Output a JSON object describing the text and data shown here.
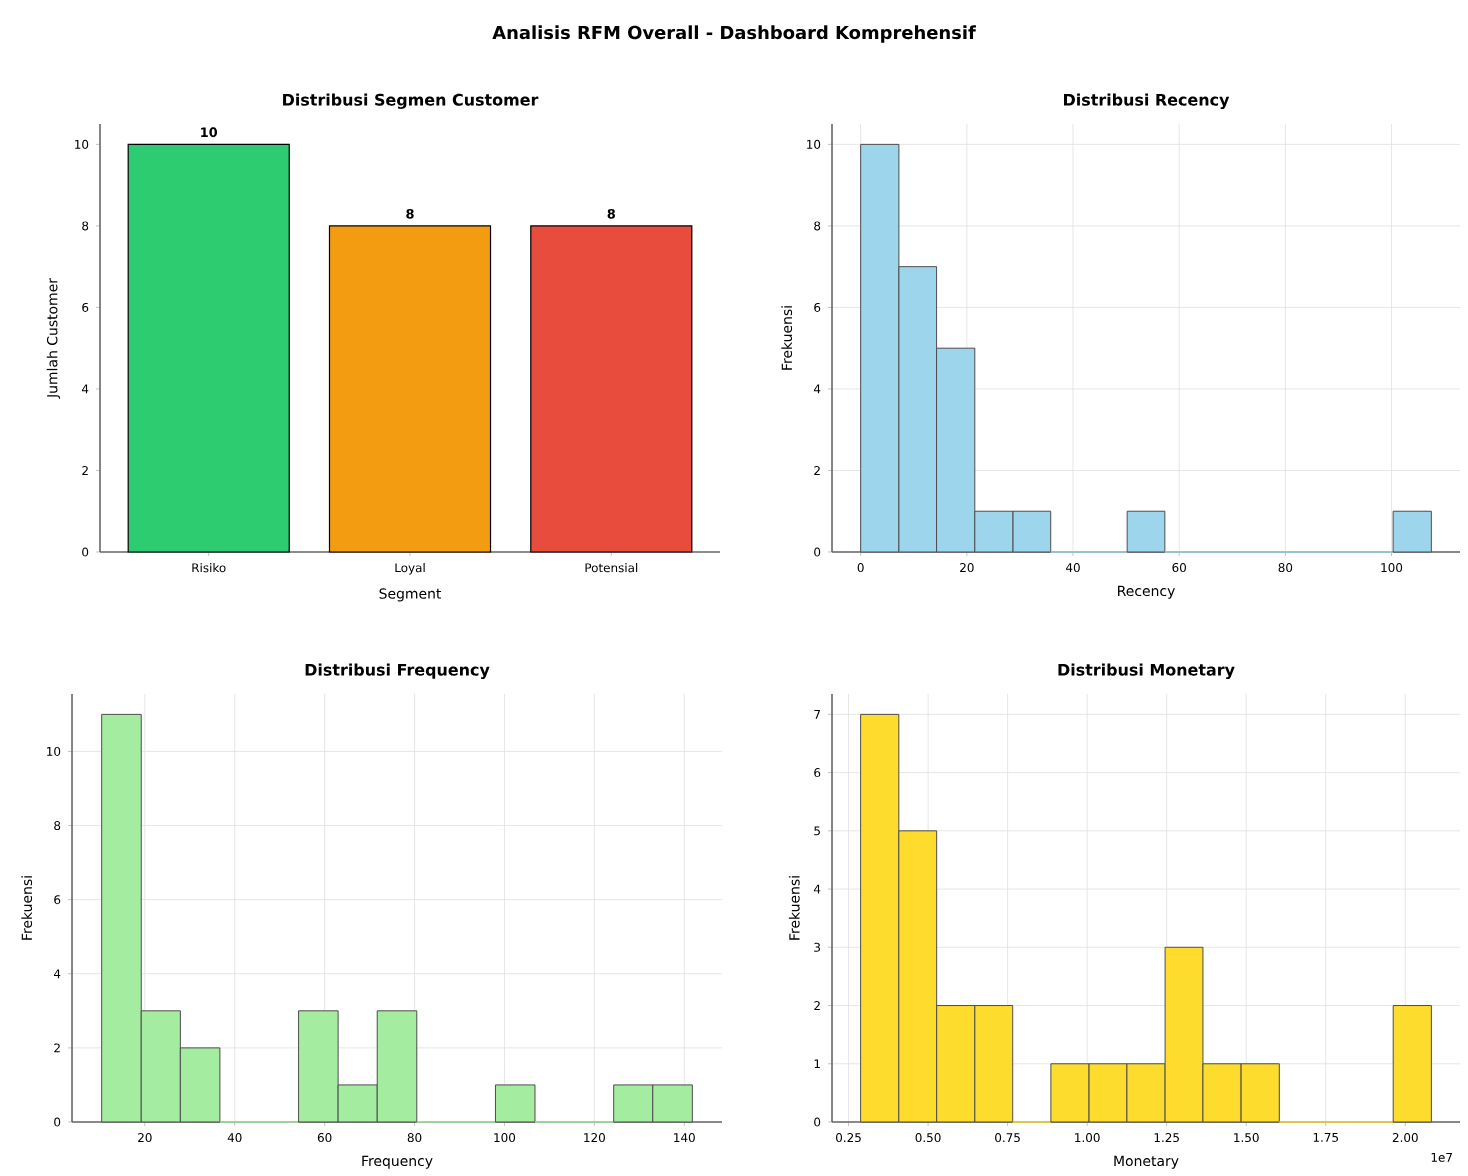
{
  "chart_data": [
    {
      "type": "other",
      "title": "Analisis RFM Overall - Dashboard Komprehensif"
    },
    {
      "type": "bar",
      "title": "Distribusi Segmen Customer",
      "xlabel": "Segment",
      "ylabel": "Jumlah Customer",
      "categories": [
        "Risiko",
        "Loyal",
        "Potensial"
      ],
      "values": [
        10,
        8,
        8
      ],
      "colors": [
        "#2ecc71",
        "#f39c12",
        "#e74c3c"
      ],
      "ylim": [
        0,
        10.5
      ],
      "yticks": [
        0,
        2,
        4,
        6,
        8,
        10
      ],
      "data_labels": true,
      "grid": false
    },
    {
      "type": "histogram",
      "title": "Distribusi Recency",
      "xlabel": "Recency",
      "ylabel": "Frekuensi",
      "bins": [
        0,
        7.2,
        14.3,
        21.5,
        28.7,
        35.8,
        50.2,
        57.3,
        100.3,
        107.5
      ],
      "values": [
        10,
        7,
        5,
        1,
        1,
        0,
        1,
        0,
        1
      ],
      "color": "#9dd6ec",
      "xlim": [
        -5.4,
        112.9
      ],
      "xticks": [
        0,
        20,
        40,
        60,
        80,
        100
      ],
      "ylim": [
        0,
        10.5
      ],
      "yticks": [
        0,
        2,
        4,
        6,
        8,
        10
      ],
      "grid": true
    },
    {
      "type": "histogram",
      "title": "Distribusi Frequency",
      "xlabel": "Frequency",
      "ylabel": "Frekuensi",
      "bins": [
        10.4,
        19.2,
        27.9,
        36.7,
        45.4,
        54.2,
        63,
        71.7,
        80.5,
        89.2,
        98,
        106.8,
        115.5,
        124.3,
        133,
        141.8
      ],
      "values": [
        11,
        3,
        2,
        0,
        0,
        3,
        1,
        3,
        0,
        0,
        1,
        0,
        0,
        1,
        1
      ],
      "color": "#a4eda0",
      "xlim": [
        3.8,
        148.4
      ],
      "xticks": [
        20,
        40,
        60,
        80,
        100,
        120,
        140
      ],
      "ylim": [
        0,
        11.55
      ],
      "yticks": [
        0,
        2,
        4,
        6,
        8,
        10
      ],
      "grid": true
    },
    {
      "type": "histogram",
      "title": "Distribusi Monetary",
      "xlabel": "Monetary",
      "ylabel": "Frekuensi",
      "bins": [
        0.288,
        0.408,
        0.527,
        0.647,
        0.766,
        0.886,
        1.006,
        1.125,
        1.245,
        1.364,
        1.484,
        1.604,
        1.723,
        1.843,
        1.962,
        2.082
      ],
      "values": [
        7,
        5,
        2,
        2,
        0,
        1,
        1,
        1,
        3,
        1,
        1,
        0,
        0,
        0,
        2
      ],
      "color": "#fddc2e",
      "xlim": [
        0.198,
        2.172
      ],
      "xticks": [
        {
          "value": 0.25,
          "label": "0.25"
        },
        {
          "value": 0.5,
          "label": "0.50"
        },
        {
          "value": 0.75,
          "label": "0.75"
        },
        {
          "value": 1,
          "label": "1.00"
        },
        {
          "value": 1.25,
          "label": "1.25"
        },
        {
          "value": 1.5,
          "label": "1.50"
        },
        {
          "value": 1.75,
          "label": "1.75"
        },
        {
          "value": 2,
          "label": "2.00"
        }
      ],
      "ylim": [
        0,
        7.35
      ],
      "yticks": [
        0,
        1,
        2,
        3,
        4,
        5,
        6,
        7
      ],
      "grid": true,
      "annotations": [
        "1e7"
      ]
    }
  ]
}
